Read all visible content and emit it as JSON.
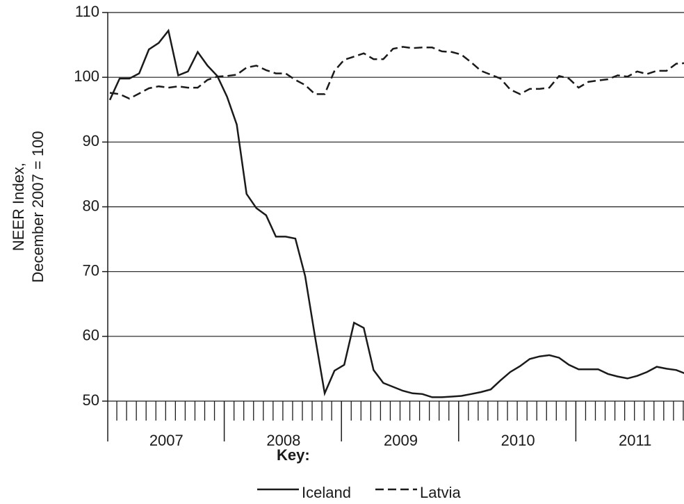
{
  "chart_data": {
    "type": "line",
    "ylabel": [
      "NEER Index,",
      "December 2007 = 100"
    ],
    "ylim": [
      50,
      110
    ],
    "yticks": [
      50,
      60,
      70,
      80,
      90,
      100,
      110
    ],
    "grid": true,
    "categories": [
      null,
      null,
      null,
      null,
      null,
      null,
      null,
      null,
      null,
      null,
      null,
      null,
      null,
      null,
      null,
      null,
      null,
      null,
      null,
      null,
      null,
      null,
      null,
      null,
      null,
      null,
      null,
      null,
      null,
      null,
      null,
      null,
      null,
      null,
      null,
      null,
      null,
      null,
      null,
      null,
      null,
      null,
      null,
      null,
      null,
      null,
      null,
      null,
      null,
      null,
      null,
      null,
      null,
      null,
      null,
      null,
      null,
      null,
      null,
      null
    ],
    "year_labels": [
      "2007",
      "2008",
      "2009",
      "2010",
      "2011"
    ],
    "legend_title": "Key:",
    "series": [
      {
        "name": "Iceland",
        "color": "#1a1a1a",
        "dash": "solid",
        "values": [
          96.5,
          99.8,
          99.8,
          100.6,
          104.3,
          105.3,
          107.2,
          100.3,
          100.9,
          103.9,
          101.8,
          100.2,
          97,
          92.7,
          82,
          79.8,
          78.7,
          75.4,
          75.4,
          75.1,
          69.3,
          60,
          51.2,
          54.7,
          55.6,
          62.1,
          61.3,
          54.8,
          52.8,
          52.2,
          51.6,
          51.2,
          51.1,
          50.6,
          50.6,
          50.7,
          50.8,
          51.1,
          51.4,
          51.8,
          53.2,
          54.5,
          55.4,
          56.5,
          56.9,
          57.1,
          56.7,
          55.6,
          54.9,
          54.9,
          54.9,
          54.2,
          53.8,
          53.5,
          53.9,
          54.5,
          55.3,
          55,
          54.8,
          54.2
        ]
      },
      {
        "name": "Latvia",
        "color": "#1a1a1a",
        "dash": "dashed",
        "values": [
          97.6,
          97.4,
          96.7,
          97.5,
          98.3,
          98.6,
          98.4,
          98.6,
          98.4,
          98.4,
          99.6,
          100.1,
          100.2,
          100.4,
          101.5,
          101.8,
          101.1,
          100.6,
          100.6,
          99.6,
          98.8,
          97.4,
          97.4,
          101,
          102.7,
          103.2,
          103.7,
          102.8,
          102.8,
          104.4,
          104.7,
          104.5,
          104.6,
          104.6,
          104,
          103.9,
          103.5,
          102.3,
          101,
          100.4,
          99.8,
          98.1,
          97.4,
          98.2,
          98.2,
          98.4,
          100.2,
          99.8,
          98.4,
          99.3,
          99.5,
          99.7,
          100.3,
          100.1,
          100.9,
          100.5,
          101,
          101,
          102.1,
          102.2
        ]
      }
    ]
  }
}
